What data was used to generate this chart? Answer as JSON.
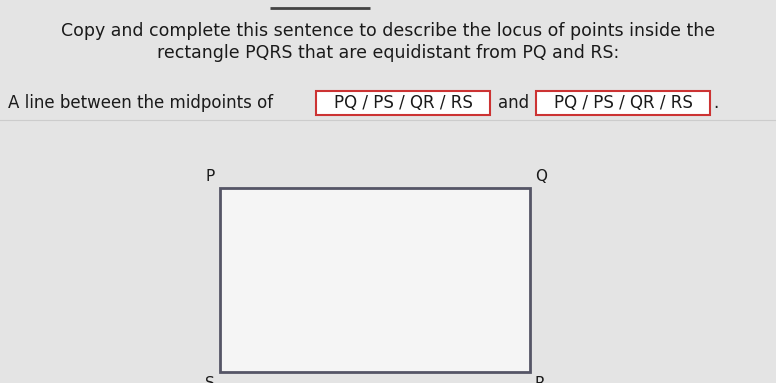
{
  "bg_color": "#e4e4e4",
  "title_line1": "Copy and complete this sentence to describe the locus of points inside the",
  "title_line2": "rectangle PQRS that are equidistant from PQ and RS:",
  "sentence_prefix": "A line between the midpoints of",
  "box1_text": "PQ / PS / QR / RS",
  "sentence_and": "and",
  "box2_text": "PQ / PS / QR / RS",
  "text_color": "#1a1a1a",
  "box_border_color": "#cc3333",
  "box_bg_color": "#ffffff",
  "rect_edge_color": "#555566",
  "rect_face_color": "#f5f5f5",
  "title_fontsize": 12.5,
  "body_fontsize": 12.0,
  "label_fontsize": 11.0
}
